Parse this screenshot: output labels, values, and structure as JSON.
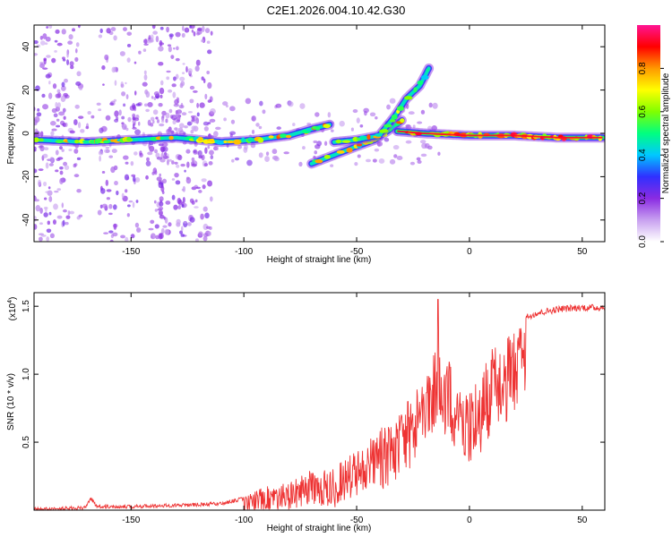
{
  "title": "C2E1.2026.004.10.42.G30",
  "chart_data": [
    {
      "type": "heatmap",
      "xlabel": "Height of straight line (km)",
      "ylabel": "Frequency (Hz)",
      "xlim": [
        -193,
        60
      ],
      "ylim": [
        -50,
        50
      ],
      "xticks": [
        -150,
        -100,
        -50,
        0,
        50
      ],
      "yticks": [
        -40,
        -20,
        0,
        20,
        40
      ],
      "colorbar": {
        "label": "Normalized spectral amplitude",
        "range": [
          0,
          1
        ],
        "ticks": [
          "0.0",
          "0.2",
          "0.4",
          "0.6",
          "0.8"
        ],
        "tick_values": [
          0.0,
          0.2,
          0.4,
          0.6,
          0.8
        ],
        "colors": [
          "#ffffff",
          "#c8a0f0",
          "#8a2be2",
          "#3030ff",
          "#00c8ff",
          "#00ff80",
          "#80ff00",
          "#ffff00",
          "#ff9900",
          "#ff0000",
          "#ff1493"
        ]
      },
      "traces": [
        {
          "x": [
            -193,
            -170,
            -150,
            -130,
            -110,
            -95,
            -80,
            -70,
            -62
          ],
          "y": [
            -3,
            -4,
            -3,
            -2,
            -4,
            -3,
            -1,
            2,
            4
          ]
        },
        {
          "x": [
            -70,
            -60,
            -50,
            -42,
            -35,
            -30
          ],
          "y": [
            -14,
            -10,
            -6,
            -3,
            2,
            6
          ]
        },
        {
          "x": [
            -60,
            -50,
            -40,
            -33,
            -28,
            -22,
            -18
          ],
          "y": [
            -4,
            -3,
            -1,
            8,
            16,
            22,
            30
          ]
        },
        {
          "x": [
            -32,
            -20,
            0,
            20,
            40,
            59
          ],
          "y": [
            1,
            0,
            -1,
            -1,
            -2,
            -2
          ]
        }
      ]
    },
    {
      "type": "line",
      "xlabel": "Height of straight line (km)",
      "ylabel": "SNR (10 * v/v)",
      "multiplier": "(x10",
      "multiplier_exp": "4",
      "multiplier_close": ")",
      "xlim": [
        -193,
        60
      ],
      "ylim": [
        0,
        1.6
      ],
      "xticks": [
        -150,
        -100,
        -50,
        0,
        50
      ],
      "yticks": [
        0.5,
        1.0,
        1.5
      ],
      "ytick_labels": [
        "0.5",
        "1.0",
        "1.5"
      ],
      "color": "#ee3333",
      "envelope": [
        [
          -193,
          0.02
        ],
        [
          -170,
          0.03
        ],
        [
          -168,
          0.1
        ],
        [
          -165,
          0.04
        ],
        [
          -150,
          0.04
        ],
        [
          -130,
          0.05
        ],
        [
          -110,
          0.06
        ],
        [
          -100,
          0.1
        ],
        [
          -90,
          0.18
        ],
        [
          -80,
          0.2
        ],
        [
          -70,
          0.3
        ],
        [
          -60,
          0.32
        ],
        [
          -50,
          0.45
        ],
        [
          -40,
          0.6
        ],
        [
          -30,
          0.75
        ],
        [
          -25,
          0.85
        ],
        [
          -20,
          1.1
        ],
        [
          -15,
          1.18
        ],
        [
          -10,
          1.15
        ],
        [
          -5,
          1.05
        ],
        [
          0,
          0.9
        ],
        [
          5,
          1.05
        ],
        [
          10,
          1.2
        ],
        [
          15,
          1.25
        ],
        [
          20,
          1.35
        ],
        [
          25,
          1.42
        ],
        [
          30,
          1.45
        ],
        [
          40,
          1.48
        ],
        [
          50,
          1.49
        ],
        [
          60,
          1.49
        ]
      ],
      "spike": {
        "x": -14,
        "y": 1.55
      }
    }
  ]
}
